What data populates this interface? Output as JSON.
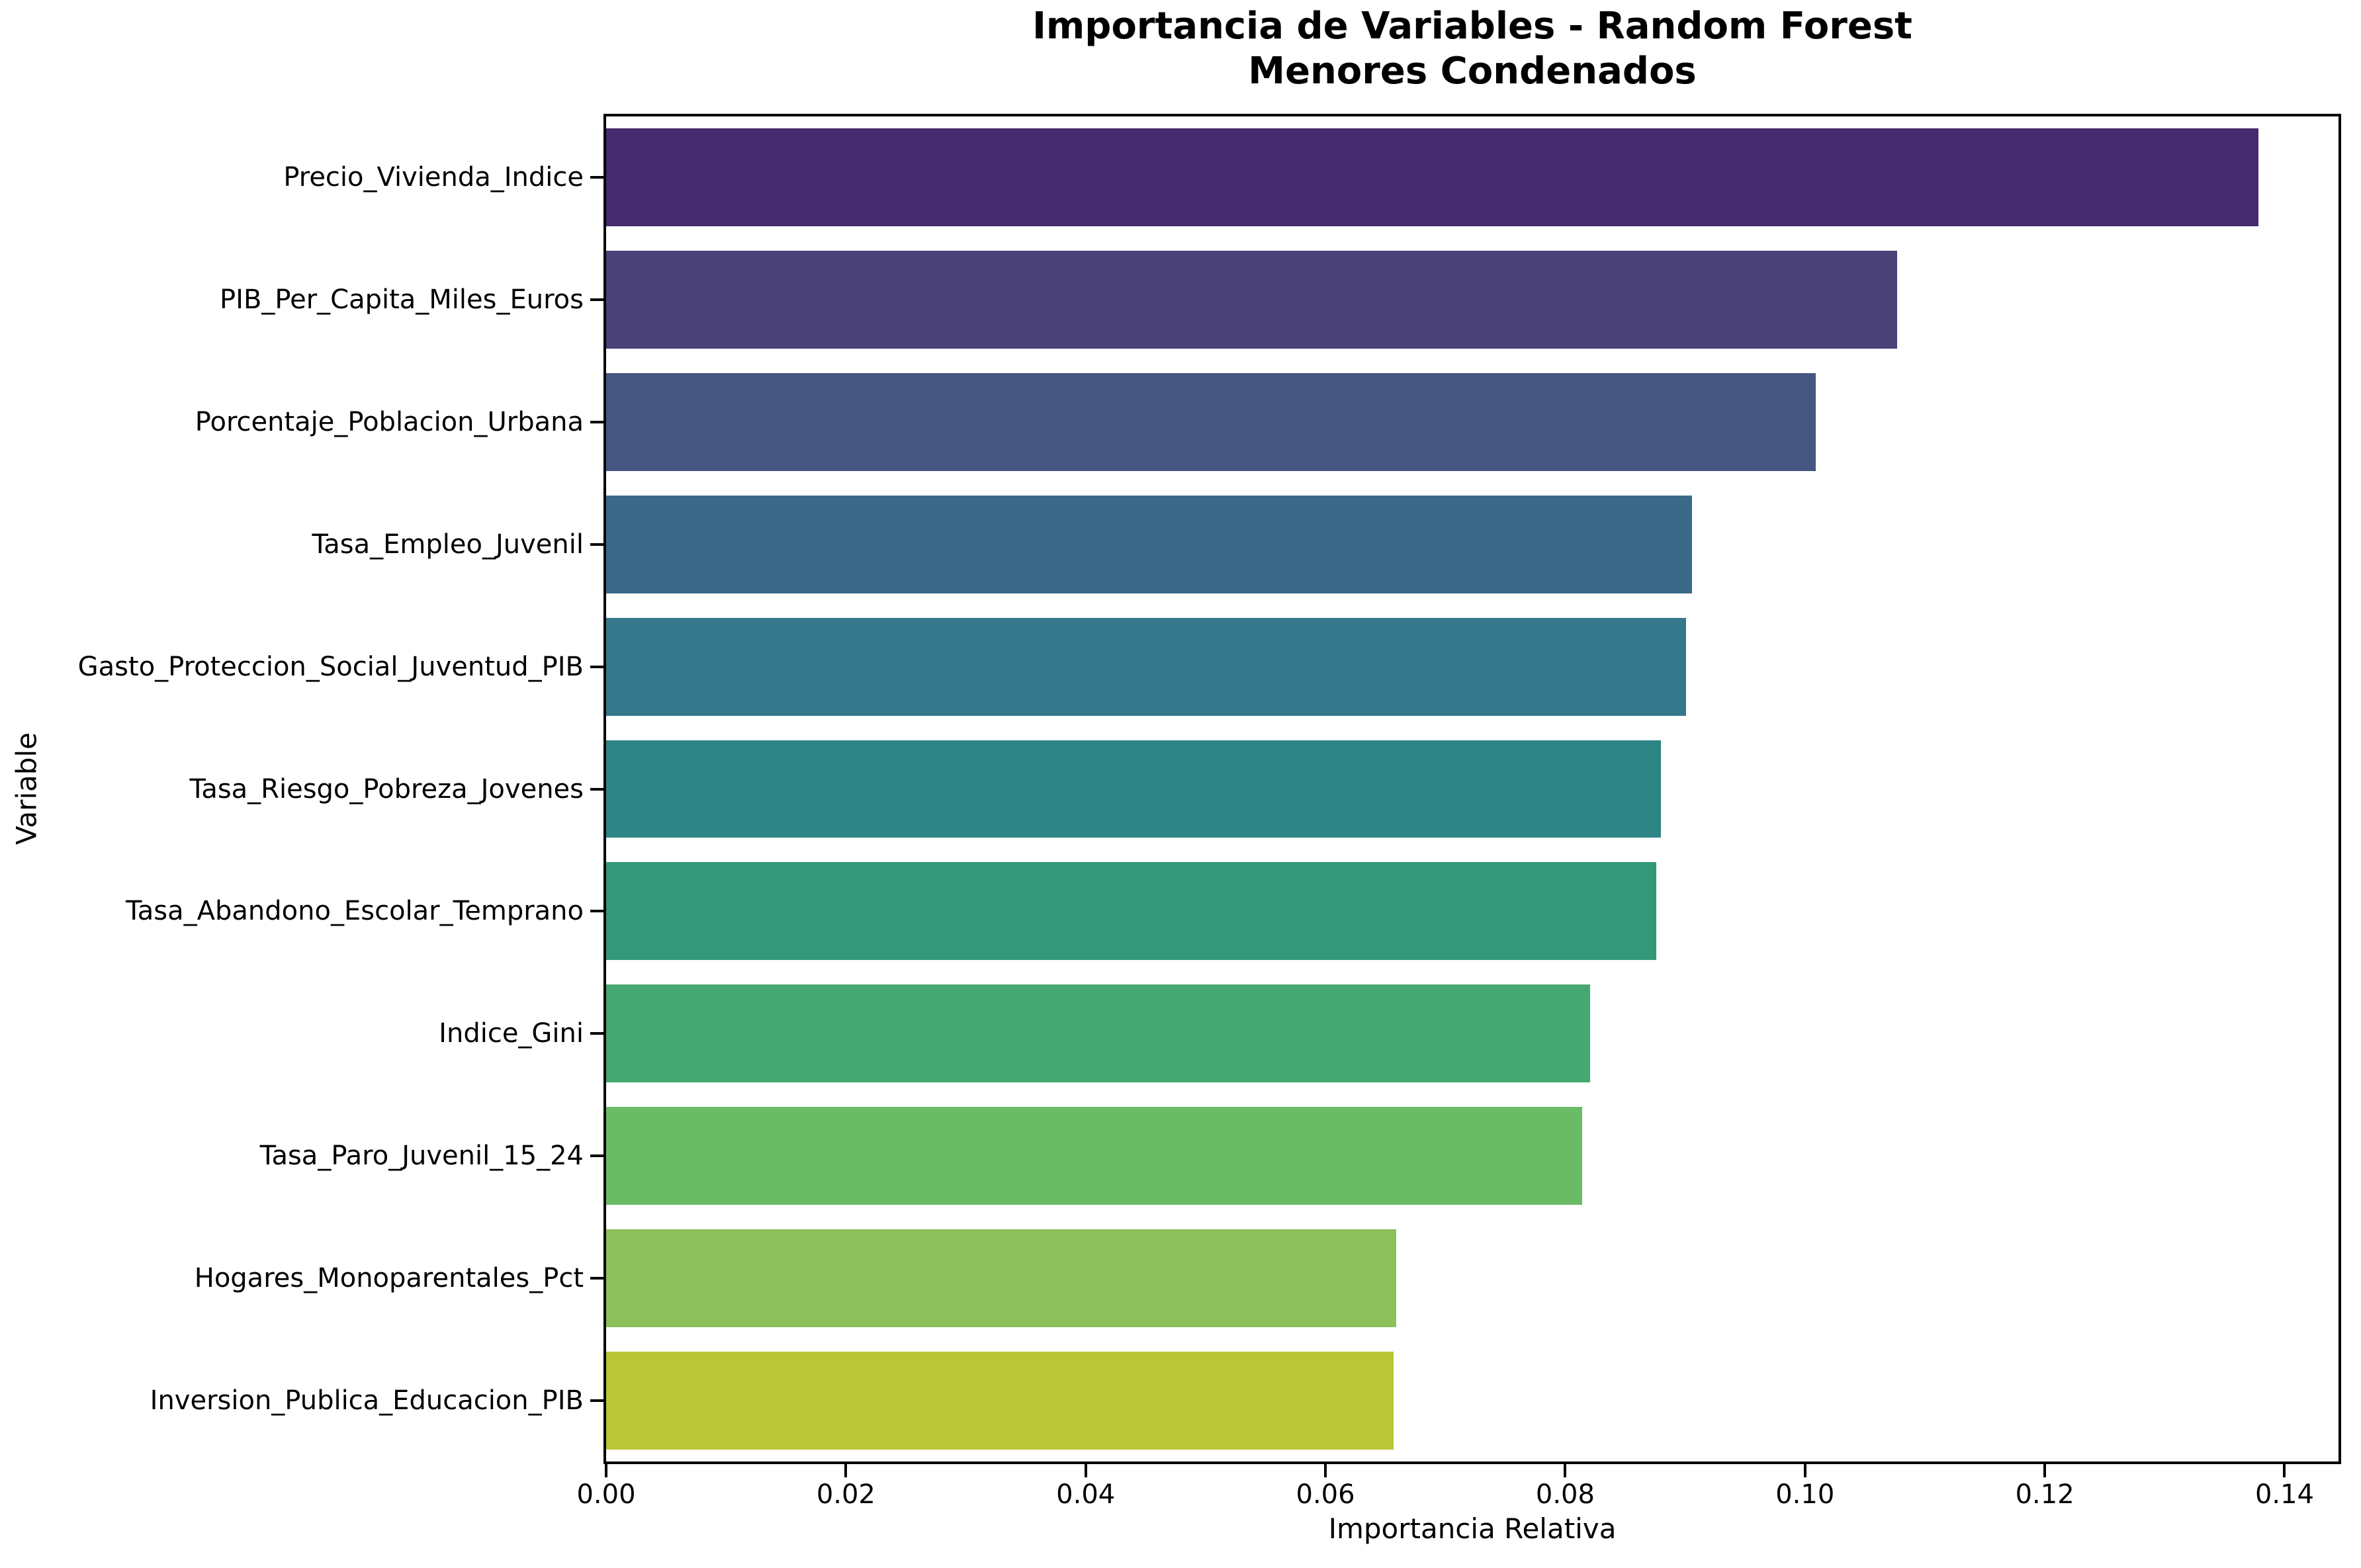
{
  "figure": {
    "title": "Importancia de Variables - Random Forest\nMenores Condenados",
    "xlabel": "Importancia Relativa",
    "ylabel": "Variable"
  },
  "chart_data": {
    "type": "bar",
    "orientation": "horizontal",
    "title": "Importancia de Variables - Random Forest\nMenores Condenados",
    "xlabel": "Importancia Relativa",
    "ylabel": "Variable",
    "categories": [
      "Precio_Vivienda_Indice",
      "PIB_Per_Capita_Miles_Euros",
      "Porcentaje_Poblacion_Urbana",
      "Tasa_Empleo_Juvenil",
      "Gasto_Proteccion_Social_Juventud_PIB",
      "Tasa_Riesgo_Pobreza_Jovenes",
      "Tasa_Abandono_Escolar_Temprano",
      "Indice_Gini",
      "Tasa_Paro_Juvenil_15_24",
      "Hogares_Monoparentales_Pct",
      "Inversion_Publica_Educacion_PIB"
    ],
    "values": [
      0.1378,
      0.1077,
      0.1009,
      0.0906,
      0.0901,
      0.088,
      0.0876,
      0.0821,
      0.0814,
      0.0659,
      0.0657
    ],
    "bar_colors": [
      "#452a6d",
      "#494178",
      "#455781",
      "#3a6a88",
      "#35788c",
      "#2d8585",
      "#339878",
      "#45a872",
      "#6bbb66",
      "#8bc05a",
      "#b9c636"
    ],
    "xlim": [
      0,
      0.1445
    ],
    "xticks": [
      0,
      0.02,
      0.04,
      0.06,
      0.08,
      0.1,
      0.12,
      0.14
    ],
    "xtick_labels": [
      "0.00",
      "0.02",
      "0.04",
      "0.06",
      "0.08",
      "0.10",
      "0.12",
      "0.14"
    ],
    "grid": false,
    "legend": "none",
    "bar_fill_ratio": 0.8,
    "spine_color": "#000000",
    "background": "#ffffff"
  }
}
